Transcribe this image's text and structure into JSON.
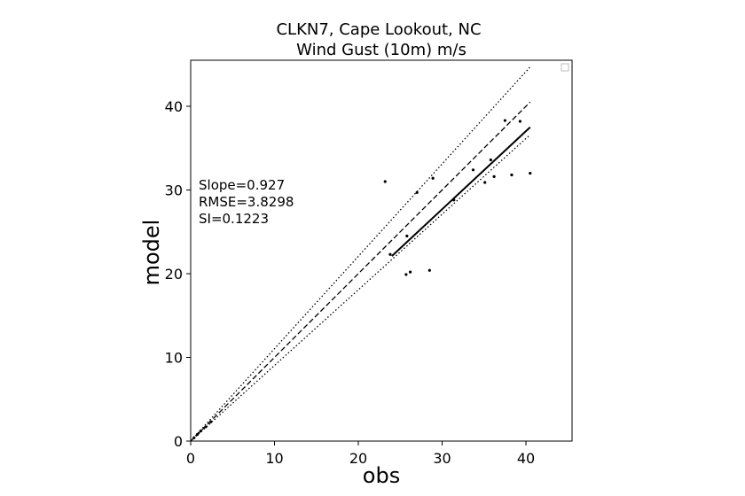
{
  "chart_data": {
    "type": "scatter",
    "title": "CLKN7, Cape Lookout, NC",
    "subtitle": "Wind Gust (10m) m/s",
    "xlabel": "obs",
    "ylabel": "model",
    "xlim": [
      0,
      45.5
    ],
    "ylim": [
      0,
      45.5
    ],
    "xticks": [
      0,
      10,
      20,
      30,
      40
    ],
    "yticks": [
      0,
      10,
      20,
      30,
      40
    ],
    "grid": false,
    "legend": "top-right (empty)",
    "stats": [
      "Slope=0.927",
      "RMSE=3.8298",
      "SI=0.1223"
    ],
    "points": [
      {
        "x": 0.4,
        "y": 0.4
      },
      {
        "x": 0.8,
        "y": 0.8
      },
      {
        "x": 1.2,
        "y": 1.2
      },
      {
        "x": 1.8,
        "y": 1.7
      },
      {
        "x": 2.4,
        "y": 2.3
      },
      {
        "x": 23.2,
        "y": 31.0
      },
      {
        "x": 23.8,
        "y": 22.3
      },
      {
        "x": 25.8,
        "y": 24.5
      },
      {
        "x": 25.7,
        "y": 19.9
      },
      {
        "x": 26.2,
        "y": 20.2
      },
      {
        "x": 27.0,
        "y": 29.7
      },
      {
        "x": 28.5,
        "y": 20.4
      },
      {
        "x": 28.9,
        "y": 31.4
      },
      {
        "x": 31.4,
        "y": 28.8
      },
      {
        "x": 33.7,
        "y": 32.4
      },
      {
        "x": 35.1,
        "y": 30.9
      },
      {
        "x": 35.8,
        "y": 33.6
      },
      {
        "x": 36.2,
        "y": 31.6
      },
      {
        "x": 37.5,
        "y": 38.3
      },
      {
        "x": 38.3,
        "y": 31.8
      },
      {
        "x": 39.3,
        "y": 38.2
      },
      {
        "x": 40.5,
        "y": 32.0
      }
    ],
    "lines": [
      {
        "name": "fit",
        "style": "solid",
        "x": [
          24.0,
          40.5
        ],
        "y": [
          22.1,
          37.5
        ]
      },
      {
        "name": "one-to-one",
        "style": "dashed",
        "x": [
          0,
          40.5
        ],
        "y": [
          0,
          40.5
        ]
      },
      {
        "name": "upper-bound",
        "style": "dotted",
        "x": [
          0,
          40.5
        ],
        "y": [
          0,
          44.7
        ]
      },
      {
        "name": "lower-bound",
        "style": "dotted",
        "x": [
          0,
          40.5
        ],
        "y": [
          0,
          36.6
        ]
      }
    ],
    "colors": {
      "ink": "#000000",
      "background": "#ffffff"
    }
  }
}
